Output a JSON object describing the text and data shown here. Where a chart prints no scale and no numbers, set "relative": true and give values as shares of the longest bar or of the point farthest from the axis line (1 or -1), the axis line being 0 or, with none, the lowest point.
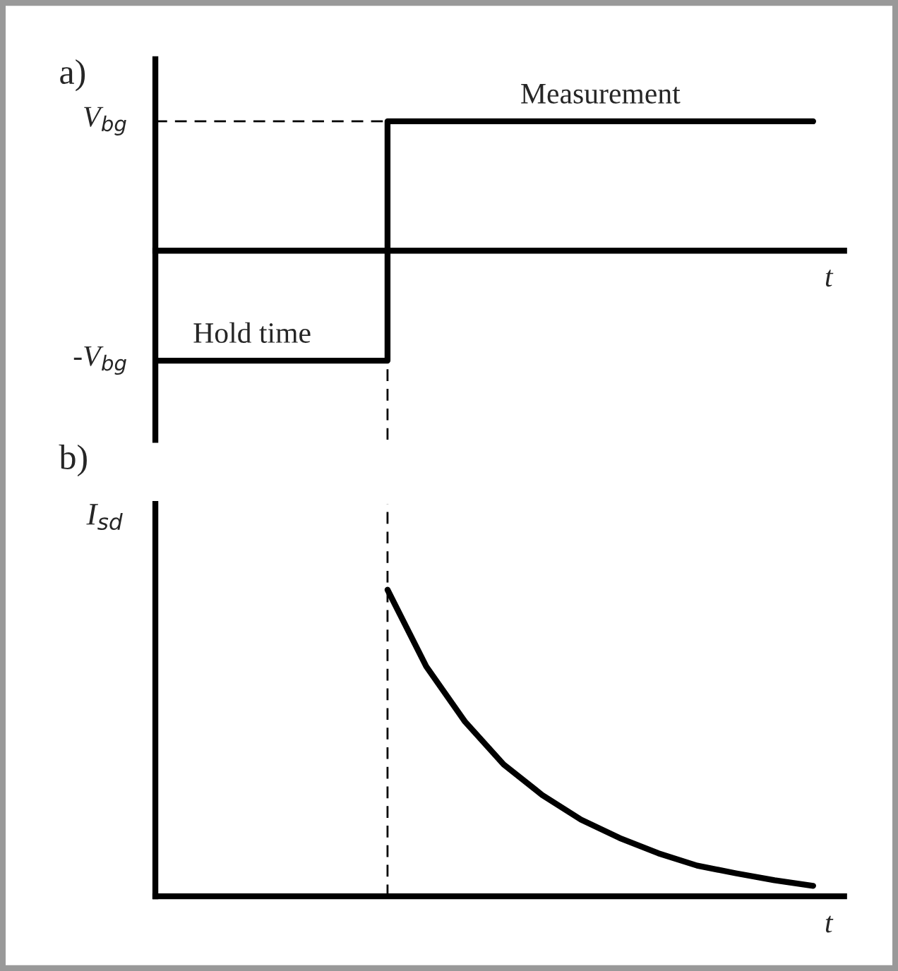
{
  "chart_data": [
    {
      "type": "step",
      "title": "a)",
      "xlabel": "t",
      "categories": [
        null,
        null,
        null,
        null,
        null,
        null,
        null,
        null,
        null,
        null,
        null,
        null,
        null,
        null,
        null,
        null,
        null,
        null
      ],
      "series": [
        {
          "color": "#000000",
          "values": [
            -0.85,
            -0.85,
            -0.85,
            -0.85,
            -0.85,
            -0.85,
            1,
            1,
            1,
            1,
            1,
            1,
            1,
            1,
            1,
            1,
            1,
            1
          ]
        }
      ],
      "relative": true,
      "ref_lines": [
        {
          "axis": "y",
          "value": 1,
          "line_style": "dashed",
          "color": "#000000"
        }
      ],
      "annotations": [
        "V$_{bg}$",
        {
          "text": "Measurement",
          "y": 1
        },
        "-V$_{bg}$",
        {
          "text": "Hold time",
          "y": -0.85
        }
      ]
    },
    {
      "type": "line",
      "title": "b)",
      "xlabel": "t",
      "ylabel": "I$_{sd}$",
      "relative": true,
      "categories": [
        null,
        null,
        null,
        null,
        null,
        null,
        null,
        null,
        null,
        null,
        null,
        null,
        null,
        null,
        null,
        null,
        null,
        null
      ],
      "series": [
        {
          "color": "#000000",
          "values": [
            null,
            null,
            null,
            null,
            null,
            null,
            1,
            0.75,
            0.57,
            0.43,
            0.33,
            0.25,
            0.19,
            0.14,
            0.1,
            0.075,
            0.052,
            0.034
          ]
        }
      ]
    }
  ]
}
